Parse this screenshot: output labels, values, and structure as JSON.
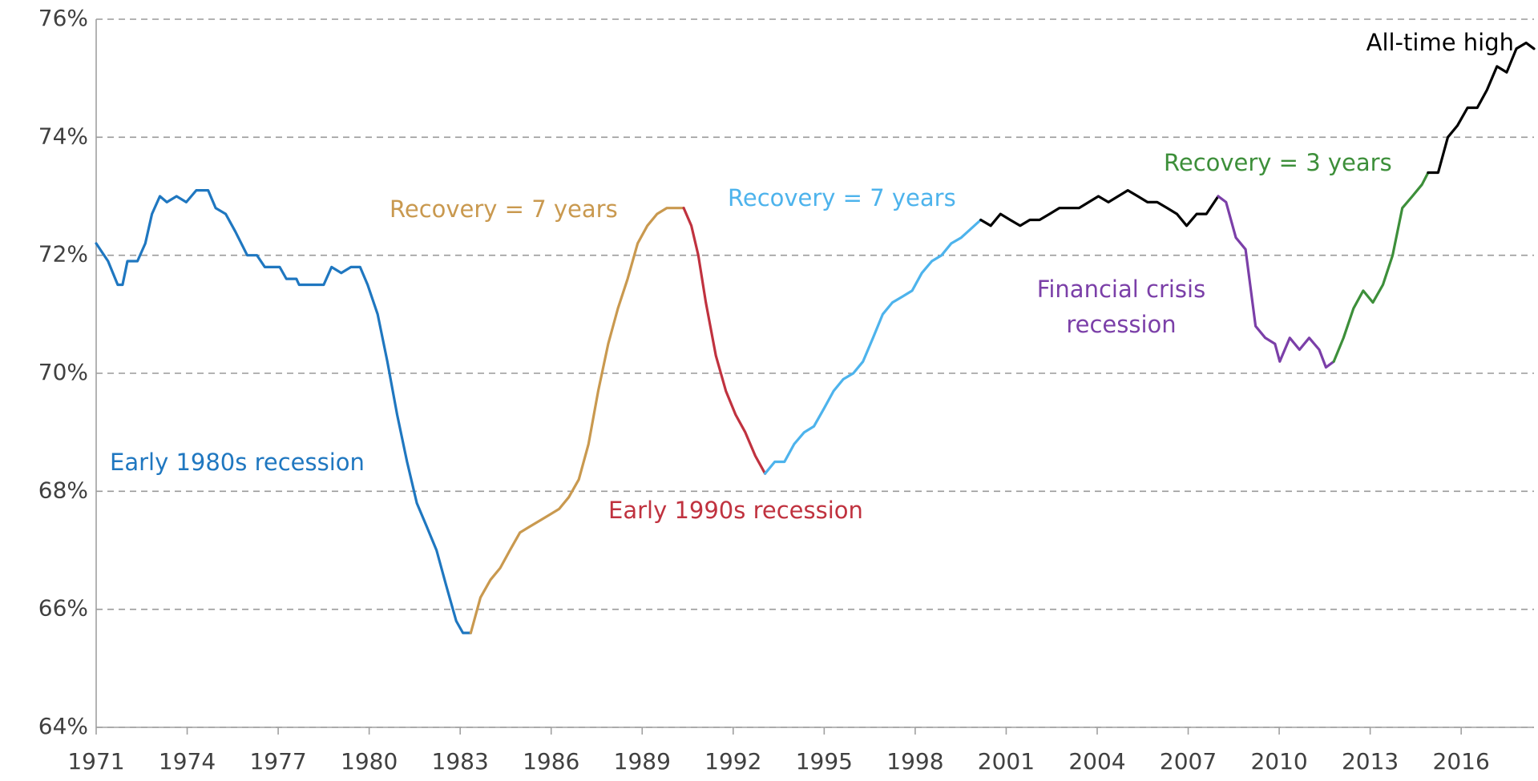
{
  "chart_data": {
    "type": "line",
    "xlim": [
      1971,
      2018.4
    ],
    "xticks": [
      1971,
      1974,
      1977,
      1980,
      1983,
      1986,
      1989,
      1992,
      1995,
      1998,
      2001,
      2004,
      2007,
      2010,
      2013,
      2016
    ],
    "ylim": [
      64,
      76
    ],
    "yticks": [
      {
        "value": 64,
        "label": "64%"
      },
      {
        "value": 66,
        "label": "66%"
      },
      {
        "value": 68,
        "label": "68%"
      },
      {
        "value": 70,
        "label": "70%"
      },
      {
        "value": 72,
        "label": "72%"
      },
      {
        "value": 74,
        "label": "74%"
      },
      {
        "value": 76,
        "label": "76%"
      }
    ],
    "grid": true,
    "series": [
      {
        "color": "#1f77c0",
        "x": [
          1971.0,
          1971.39,
          1971.71,
          1971.87,
          1972.03,
          1972.36,
          1972.62,
          1972.84,
          1973.1,
          1973.33,
          1973.65,
          1973.97,
          1974.3,
          1974.69,
          1974.94,
          1975.27,
          1975.59,
          1975.98,
          1976.3,
          1976.56,
          1977.05,
          1977.27,
          1977.6,
          1977.69,
          1978.5,
          1978.76,
          1979.08,
          1979.4,
          1979.7,
          1979.95,
          1980.28,
          1980.6,
          1980.92,
          1981.25,
          1981.57,
          1981.9,
          1982.22,
          1982.54,
          1982.87,
          1983.09,
          1983.35
        ],
        "values": [
          72.2,
          71.9,
          71.5,
          71.5,
          71.9,
          71.9,
          72.2,
          72.7,
          73.0,
          72.9,
          73.0,
          72.9,
          73.1,
          73.1,
          72.8,
          72.7,
          72.4,
          72.0,
          72.0,
          71.8,
          71.8,
          71.6,
          71.6,
          71.5,
          71.5,
          71.8,
          71.7,
          71.8,
          71.8,
          71.5,
          71.0,
          70.2,
          69.3,
          68.5,
          67.8,
          67.4,
          67.0,
          66.4,
          65.8,
          65.6,
          65.6
        ]
      },
      {
        "color": "#c9994f",
        "x": [
          1983.35,
          1983.67,
          1984.0,
          1984.32,
          1984.64,
          1984.97,
          1985.29,
          1985.61,
          1985.94,
          1986.26,
          1986.58,
          1986.91,
          1987.23,
          1987.55,
          1987.88,
          1988.2,
          1988.52,
          1988.85,
          1989.17,
          1989.49,
          1989.81,
          1990.37
        ],
        "values": [
          65.6,
          66.2,
          66.5,
          66.7,
          67.0,
          67.3,
          67.4,
          67.5,
          67.6,
          67.7,
          67.9,
          68.2,
          68.8,
          69.7,
          70.5,
          71.1,
          71.6,
          72.2,
          72.5,
          72.7,
          72.8,
          72.8
        ]
      },
      {
        "color": "#c0323f",
        "x": [
          1990.37,
          1990.62,
          1990.85,
          1991.1,
          1991.43,
          1991.76,
          1992.08,
          1992.4,
          1992.73,
          1993.05
        ],
        "values": [
          72.8,
          72.5,
          72.0,
          71.2,
          70.3,
          69.7,
          69.3,
          69.0,
          68.6,
          68.3
        ]
      },
      {
        "color": "#4db3ec",
        "x": [
          1993.05,
          1993.37,
          1993.69,
          1994.01,
          1994.34,
          1994.66,
          1994.99,
          1995.31,
          1995.63,
          1995.96,
          1996.28,
          1996.61,
          1996.93,
          1997.25,
          1997.58,
          1997.9,
          1998.22,
          1998.55,
          1998.87,
          1999.19,
          1999.52,
          2000.16
        ],
        "values": [
          68.3,
          68.5,
          68.5,
          68.8,
          69.0,
          69.1,
          69.4,
          69.7,
          69.9,
          70.0,
          70.2,
          70.6,
          71.0,
          71.2,
          71.3,
          71.4,
          71.7,
          71.9,
          72.0,
          72.2,
          72.3,
          72.6
        ]
      },
      {
        "color": "#000000",
        "x": [
          2000.16,
          2000.49,
          2000.81,
          2001.13,
          2001.46,
          2001.78,
          2002.1,
          2002.43,
          2002.75,
          2003.07,
          2003.4,
          2003.72,
          2004.04,
          2004.37,
          2004.69,
          2005.01,
          2005.34,
          2005.66,
          2005.98,
          2006.31,
          2006.63,
          2006.95,
          2007.28,
          2007.6,
          2007.99
        ],
        "values": [
          72.6,
          72.5,
          72.7,
          72.6,
          72.5,
          72.6,
          72.6,
          72.7,
          72.8,
          72.8,
          72.8,
          72.9,
          73.0,
          72.9,
          73.0,
          73.1,
          73.0,
          72.9,
          72.9,
          72.8,
          72.7,
          72.5,
          72.7,
          72.7,
          73.0
        ]
      },
      {
        "color": "#7b3fa8",
        "x": [
          2007.99,
          2008.25,
          2008.57,
          2008.89,
          2009.22,
          2009.54,
          2009.86,
          2010.02,
          2010.35,
          2010.67,
          2010.99,
          2011.32,
          2011.54,
          2011.8
        ],
        "values": [
          73.0,
          72.9,
          72.3,
          72.1,
          70.8,
          70.6,
          70.5,
          70.2,
          70.6,
          70.4,
          70.6,
          70.4,
          70.1,
          70.2
        ]
      },
      {
        "color": "#3d8f3a",
        "x": [
          2011.8,
          2012.12,
          2012.45,
          2012.77,
          2013.09,
          2013.42,
          2013.74,
          2014.06,
          2014.39,
          2014.71,
          2014.91
        ],
        "values": [
          70.2,
          70.6,
          71.1,
          71.4,
          71.2,
          71.5,
          72.0,
          72.8,
          73.0,
          73.2,
          73.4
        ]
      },
      {
        "color": "#000000",
        "x": [
          2014.91,
          2015.24,
          2015.56,
          2015.88,
          2016.21,
          2016.53,
          2016.85,
          2017.18,
          2017.5,
          2017.82,
          2018.14,
          2018.4
        ],
        "values": [
          73.4,
          73.4,
          74.0,
          74.2,
          74.5,
          74.5,
          74.8,
          75.2,
          75.1,
          75.5,
          75.6,
          75.5
        ]
      }
    ],
    "annotations": [
      {
        "lines": [
          "Early 1980s recession"
        ],
        "color": "#1f77c0"
      },
      {
        "lines": [
          "Recovery = 7 years"
        ],
        "color": "#c9994f"
      },
      {
        "lines": [
          "Early 1990s recession"
        ],
        "color": "#c0323f"
      },
      {
        "lines": [
          "Recovery = 7 years"
        ],
        "color": "#4db3ec"
      },
      {
        "lines": [
          "Financial crisis",
          "recession"
        ],
        "color": "#7b3fa8"
      },
      {
        "lines": [
          "Recovery = 3 years"
        ],
        "color": "#3d8f3a"
      },
      {
        "lines": [
          "All-time high"
        ],
        "color": "#000000"
      }
    ]
  }
}
